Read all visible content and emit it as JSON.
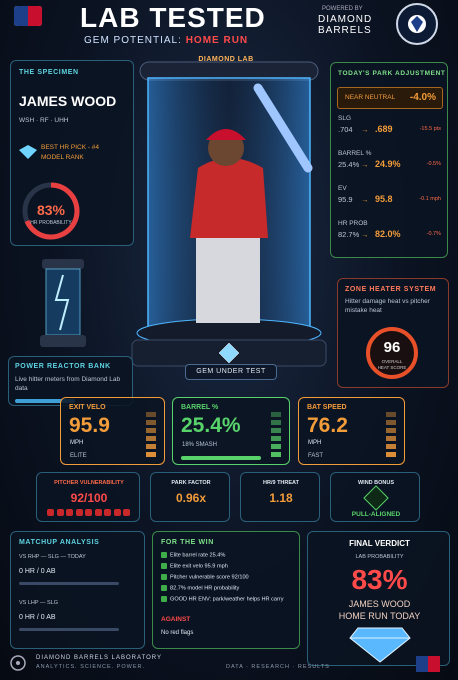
{
  "header": {
    "title": "LAB TESTED",
    "subtitle": "GEM POTENTIAL:",
    "subtitle_highlight": "HOME RUN",
    "powered_by": "POWERED BY",
    "brand_line1": "DIAMOND",
    "brand_line2": "BARRELS",
    "badge": "DIAMOND LAB"
  },
  "specimen": {
    "label": "THE SPECIMEN",
    "name": "JAMES WOOD",
    "meta": "WSH · RF · UHH",
    "pick": "BEST HR PICK - #4",
    "rank": "MODEL RANK",
    "hr_prob": "83%",
    "hr_prob_label": "HR PROBABILITY"
  },
  "park": {
    "title": "TODAY'S PARK ADJUSTMENT",
    "status": "NEAR NEUTRAL",
    "status_value": "-4.0%",
    "arrow": "→",
    "rows": [
      {
        "label": "SLG",
        "from": ".704",
        "to": ".689",
        "delta": "-15.5 pts"
      },
      {
        "label": "BARREL %",
        "from": "25.4%",
        "to": "24.9%",
        "delta": "-0.5%"
      },
      {
        "label": "EV",
        "from": "95.9",
        "to": "95.8",
        "delta": "-0.1 mph"
      },
      {
        "label": "HR PROB",
        "from": "82.7%",
        "to": "82.0%",
        "delta": "-0.7%"
      }
    ]
  },
  "zone": {
    "title": "ZONE HEATER SYSTEM",
    "desc": "Hitter damage heat vs pitcher mistake heat",
    "score": "96",
    "score_label_1": "OVERALL",
    "score_label_2": "HEAT SCORE"
  },
  "reactor": {
    "title": "POWER REACTOR BANK",
    "desc": "Live hitter meters from Diamond Lab data"
  },
  "image_label": "GEM UNDER TEST",
  "metrics": [
    {
      "label": "EXIT VELO",
      "value": "95.9",
      "unit": "MPH",
      "tag": "ELITE"
    },
    {
      "label": "BARREL %",
      "value": "25.4%",
      "unit": "",
      "tag": "18% SMASH"
    },
    {
      "label": "BAT SPEED",
      "value": "76.2",
      "unit": "MPH",
      "tag": "FAST"
    }
  ],
  "stats": [
    {
      "label": "PITCHER VULNERABILITY",
      "value": "92/100"
    },
    {
      "label": "PARK FACTOR",
      "value": "0.96x"
    },
    {
      "label": "HR/9 THREAT",
      "value": "1.18"
    },
    {
      "label": "WIND BONUS",
      "value": "PULL-ALIGNED"
    }
  ],
  "matchup": {
    "title": "MATCHUP ANALYSIS",
    "rows": [
      {
        "label": "VS RHP — SLG — TODAY",
        "value": "0 HR / 0 AB"
      },
      {
        "label": "VS LHP — SLG",
        "value": "0 HR / 0 AB"
      }
    ]
  },
  "win": {
    "title": "FOR THE WIN",
    "items": [
      "Elite barrel rate 25.4%",
      "Elite exit velo 95.9 mph",
      "Pitcher vulnerable score 92/100",
      "82.7% model HR probability",
      "GOOD HR ENV: park/weather helps HR carry"
    ],
    "against_title": "AGAINST",
    "against": [
      "No red flags"
    ]
  },
  "verdict": {
    "title": "FINAL VERDICT",
    "label": "LAB PROBABILITY",
    "value": "83%",
    "line1": "JAMES WOOD",
    "line2": "HOME RUN TODAY"
  },
  "footer": {
    "org": "DIAMOND BARRELS LABORATORY",
    "tagline": "ANALYTICS. SCIENCE. POWER.",
    "links": "DATA · RESEARCH · RESULTS"
  }
}
